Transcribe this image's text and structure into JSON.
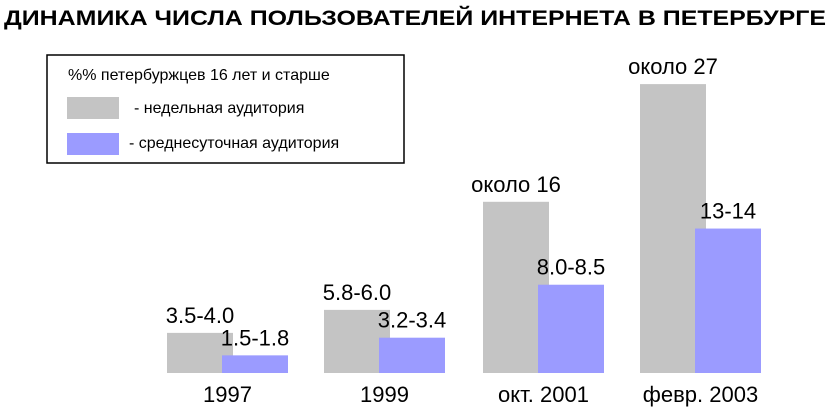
{
  "colors": {
    "weekly": "#c4c4c4",
    "daily": "#9b9bff"
  },
  "chart_data": {
    "type": "bar",
    "title": "ДИНАМИКА ЧИСЛА ПОЛЬЗОВАТЕЛЕЙ ИНТЕРНЕТА В ПЕТЕРБУРГЕ",
    "xlabel": "",
    "ylabel": "",
    "legend_title": "%% петербуржцев 16 лет и старше",
    "legend_position": "top-left",
    "grid": false,
    "ylim": [
      0,
      28
    ],
    "categories": [
      "1997",
      "1999",
      "окт. 2001",
      "февр. 2003"
    ],
    "series": [
      {
        "name": "- недельная аудитория",
        "values": [
          3.75,
          5.9,
          16,
          27
        ],
        "labels": [
          "3.5-4.0",
          "5.8-6.0",
          "около 16",
          "около 27"
        ]
      },
      {
        "name": "- среднесуточная аудитория",
        "values": [
          1.65,
          3.3,
          8.25,
          13.5
        ],
        "labels": [
          "1.5-1.8",
          "3.2-3.4",
          "8.0-8.5",
          "13-14"
        ]
      }
    ]
  }
}
